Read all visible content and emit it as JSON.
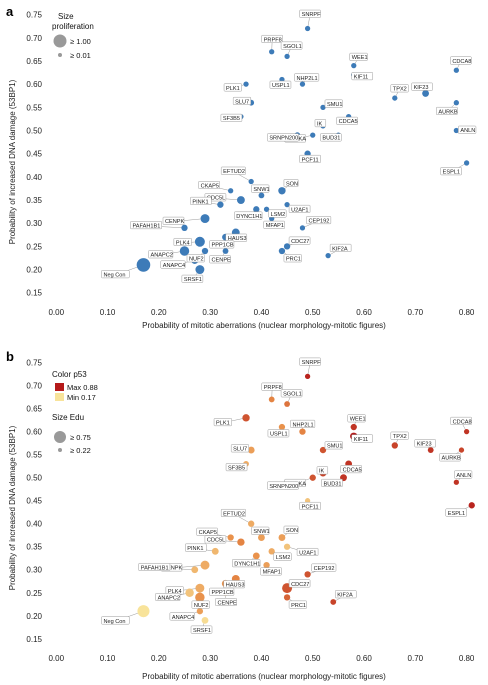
{
  "chart_data": [
    {
      "panel_letter": "a",
      "type": "scatter",
      "xlabel": "Probability of mitotic aberrations (nuclear morphology-mitotic figures)",
      "ylabel": "Probability of increased DNA damage (53BP1)",
      "xlim": [
        -0.02,
        0.83
      ],
      "ylim": [
        0.13,
        0.76
      ],
      "xticks": [
        "0.00",
        "0.10",
        "0.20",
        "0.30",
        "0.40",
        "0.50",
        "0.60",
        "0.70",
        "0.80"
      ],
      "yticks": [
        "0.15",
        "0.20",
        "0.25",
        "0.30",
        "0.35",
        "0.40",
        "0.45",
        "0.50",
        "0.55",
        "0.60",
        "0.65",
        "0.70",
        "0.75"
      ],
      "point_color": "#3d7bb8",
      "legend": {
        "title": "Size\nproliferation",
        "title_lines": [
          "Size",
          "proliferation"
        ],
        "items": [
          {
            "label": "≥ 1.00",
            "size_value": 1.0
          },
          {
            "label": "≥ 0.01",
            "size_value": 0.01
          }
        ],
        "position": "top-left"
      },
      "points": [
        {
          "x": 0.49,
          "y": 0.72,
          "size": 0.2,
          "label": "SNRPF"
        },
        {
          "x": 0.42,
          "y": 0.67,
          "size": 0.2,
          "label": "PRPF8"
        },
        {
          "x": 0.45,
          "y": 0.66,
          "size": 0.2,
          "label": "SGOL1"
        },
        {
          "x": 0.37,
          "y": 0.6,
          "size": 0.2,
          "label": "PLK1"
        },
        {
          "x": 0.44,
          "y": 0.61,
          "size": 0.2,
          "label": "USPL1"
        },
        {
          "x": 0.48,
          "y": 0.6,
          "size": 0.2,
          "label": "NHP2L1"
        },
        {
          "x": 0.58,
          "y": 0.64,
          "size": 0.2,
          "label": "WEE1"
        },
        {
          "x": 0.58,
          "y": 0.62,
          "size": 0.2,
          "label": "KIF11"
        },
        {
          "x": 0.66,
          "y": 0.57,
          "size": 0.2,
          "label": "TPX2"
        },
        {
          "x": 0.78,
          "y": 0.63,
          "size": 0.2,
          "label": "CDCA8"
        },
        {
          "x": 0.72,
          "y": 0.58,
          "size": 0.35,
          "label": "KIF23"
        },
        {
          "x": 0.78,
          "y": 0.56,
          "size": 0.2,
          "label": "AURKB"
        },
        {
          "x": 0.78,
          "y": 0.5,
          "size": 0.2,
          "label": "ANLN"
        },
        {
          "x": 0.8,
          "y": 0.43,
          "size": 0.2,
          "label": "ESPL1"
        },
        {
          "x": 0.38,
          "y": 0.56,
          "size": 0.25,
          "label": "SLU7"
        },
        {
          "x": 0.36,
          "y": 0.53,
          "size": 0.2,
          "label": "SF3B5"
        },
        {
          "x": 0.52,
          "y": 0.55,
          "size": 0.2,
          "label": "SMU1"
        },
        {
          "x": 0.57,
          "y": 0.53,
          "size": 0.2,
          "label": "CDCA5"
        },
        {
          "x": 0.52,
          "y": 0.51,
          "size": 0.2,
          "label": "IK"
        },
        {
          "x": 0.55,
          "y": 0.49,
          "size": 0.2,
          "label": "BUD31"
        },
        {
          "x": 0.5,
          "y": 0.49,
          "size": 0.2,
          "label": "AURKA"
        },
        {
          "x": 0.47,
          "y": 0.49,
          "size": 0.25,
          "label": "SRNPN200"
        },
        {
          "x": 0.49,
          "y": 0.45,
          "size": 0.3,
          "label": "PCF11"
        },
        {
          "x": 0.38,
          "y": 0.39,
          "size": 0.2,
          "label": "EFTUD2"
        },
        {
          "x": 0.34,
          "y": 0.37,
          "size": 0.2,
          "label": "CKAP5"
        },
        {
          "x": 0.4,
          "y": 0.36,
          "size": 0.25,
          "label": "SNW1"
        },
        {
          "x": 0.44,
          "y": 0.37,
          "size": 0.4,
          "label": "SON"
        },
        {
          "x": 0.45,
          "y": 0.34,
          "size": 0.2,
          "label": "U2AF1"
        },
        {
          "x": 0.36,
          "y": 0.35,
          "size": 0.45,
          "label": "CDC5L"
        },
        {
          "x": 0.32,
          "y": 0.34,
          "size": 0.3,
          "label": "PINK1"
        },
        {
          "x": 0.41,
          "y": 0.33,
          "size": 0.2,
          "label": "LSM2"
        },
        {
          "x": 0.39,
          "y": 0.33,
          "size": 0.3,
          "label": "DYNC1H1"
        },
        {
          "x": 0.42,
          "y": 0.31,
          "size": 0.2,
          "label": "MFAP1"
        },
        {
          "x": 0.29,
          "y": 0.31,
          "size": 0.55,
          "label": "CENPK"
        },
        {
          "x": 0.25,
          "y": 0.29,
          "size": 0.3,
          "label": "PAFAH1B1"
        },
        {
          "x": 0.48,
          "y": 0.29,
          "size": 0.2,
          "label": "CEP192"
        },
        {
          "x": 0.35,
          "y": 0.28,
          "size": 0.45,
          "label": "HAUS3"
        },
        {
          "x": 0.33,
          "y": 0.27,
          "size": 0.35,
          "label": "PPP1CB"
        },
        {
          "x": 0.28,
          "y": 0.26,
          "size": 0.65,
          "label": "PLK4"
        },
        {
          "x": 0.25,
          "y": 0.24,
          "size": 0.6,
          "label": "ANAPC2"
        },
        {
          "x": 0.29,
          "y": 0.24,
          "size": 0.3,
          "label": "NUF2"
        },
        {
          "x": 0.33,
          "y": 0.24,
          "size": 0.25,
          "label": "CENPE"
        },
        {
          "x": 0.45,
          "y": 0.25,
          "size": 0.3,
          "label": "CDC27"
        },
        {
          "x": 0.44,
          "y": 0.24,
          "size": 0.3,
          "label": "PRC1"
        },
        {
          "x": 0.53,
          "y": 0.23,
          "size": 0.2,
          "label": "KIF2A"
        },
        {
          "x": 0.27,
          "y": 0.22,
          "size": 0.4,
          "label": "ANAPC4"
        },
        {
          "x": 0.28,
          "y": 0.2,
          "size": 0.55,
          "label": "SRSF1"
        },
        {
          "x": 0.17,
          "y": 0.21,
          "size": 1.0,
          "label": "Neg Con"
        }
      ]
    },
    {
      "panel_letter": "b",
      "type": "scatter",
      "xlabel": "Probability of mitotic aberrations (nuclear morphology-mitotic figures)",
      "ylabel": "Probability of increased DNA damage (53BP1)",
      "xlim": [
        -0.02,
        0.83
      ],
      "ylim": [
        0.13,
        0.76
      ],
      "xticks": [
        "0.00",
        "0.10",
        "0.20",
        "0.30",
        "0.40",
        "0.50",
        "0.60",
        "0.70",
        "0.80"
      ],
      "yticks": [
        "0.15",
        "0.20",
        "0.25",
        "0.30",
        "0.35",
        "0.40",
        "0.45",
        "0.50",
        "0.55",
        "0.60",
        "0.65",
        "0.70",
        "0.75"
      ],
      "color_legend": {
        "title": "Color p53",
        "items": [
          {
            "label": "Max 0.88",
            "color": "#b51a1a"
          },
          {
            "label": "Min 0.17",
            "color": "#f8e39a"
          }
        ]
      },
      "size_legend": {
        "title": "Size Edu",
        "items": [
          {
            "label": "≥ 0.75",
            "size_value": 1.0
          },
          {
            "label": "≥ 0.22",
            "size_value": 0.01
          }
        ]
      },
      "points": [
        {
          "x": 0.49,
          "y": 0.72,
          "size": 0.2,
          "color_value": 0.85,
          "label": "SNRPF"
        },
        {
          "x": 0.42,
          "y": 0.67,
          "size": 0.25,
          "color_value": 0.55,
          "label": "PRPF8"
        },
        {
          "x": 0.45,
          "y": 0.66,
          "size": 0.25,
          "color_value": 0.6,
          "label": "SGOL1"
        },
        {
          "x": 0.37,
          "y": 0.63,
          "size": 0.4,
          "color_value": 0.7,
          "label": "PLK1"
        },
        {
          "x": 0.44,
          "y": 0.61,
          "size": 0.3,
          "color_value": 0.5,
          "label": "USPL1"
        },
        {
          "x": 0.48,
          "y": 0.6,
          "size": 0.3,
          "color_value": 0.55,
          "label": "NHP2L1"
        },
        {
          "x": 0.58,
          "y": 0.61,
          "size": 0.3,
          "color_value": 0.8,
          "label": "WEE1"
        },
        {
          "x": 0.58,
          "y": 0.59,
          "size": 0.4,
          "color_value": 0.88,
          "label": "KIF11"
        },
        {
          "x": 0.66,
          "y": 0.57,
          "size": 0.3,
          "color_value": 0.75,
          "label": "TPX2"
        },
        {
          "x": 0.8,
          "y": 0.6,
          "size": 0.2,
          "color_value": 0.8,
          "label": "CDCA8"
        },
        {
          "x": 0.73,
          "y": 0.56,
          "size": 0.25,
          "color_value": 0.8,
          "label": "KIF23"
        },
        {
          "x": 0.79,
          "y": 0.56,
          "size": 0.2,
          "color_value": 0.75,
          "label": "AURKB"
        },
        {
          "x": 0.78,
          "y": 0.49,
          "size": 0.2,
          "color_value": 0.8,
          "label": "ANLN"
        },
        {
          "x": 0.81,
          "y": 0.44,
          "size": 0.3,
          "color_value": 0.85,
          "label": "ESPL1"
        },
        {
          "x": 0.38,
          "y": 0.56,
          "size": 0.35,
          "color_value": 0.45,
          "label": "SLU7"
        },
        {
          "x": 0.37,
          "y": 0.53,
          "size": 0.25,
          "color_value": 0.4,
          "label": "SF3B5"
        },
        {
          "x": 0.52,
          "y": 0.56,
          "size": 0.3,
          "color_value": 0.7,
          "label": "SMU1"
        },
        {
          "x": 0.57,
          "y": 0.53,
          "size": 0.35,
          "color_value": 0.8,
          "label": "CDCA5"
        },
        {
          "x": 0.52,
          "y": 0.51,
          "size": 0.35,
          "color_value": 0.75,
          "label": "IK"
        },
        {
          "x": 0.56,
          "y": 0.5,
          "size": 0.35,
          "color_value": 0.8,
          "label": "BUD31"
        },
        {
          "x": 0.5,
          "y": 0.5,
          "size": 0.3,
          "color_value": 0.7,
          "label": "AURKA"
        },
        {
          "x": 0.47,
          "y": 0.49,
          "size": 0.25,
          "color_value": 0.35,
          "label": "SRNPN200"
        },
        {
          "x": 0.49,
          "y": 0.45,
          "size": 0.2,
          "color_value": 0.3,
          "label": "PCF11"
        },
        {
          "x": 0.38,
          "y": 0.4,
          "size": 0.3,
          "color_value": 0.4,
          "label": "EFTUD2"
        },
        {
          "x": 0.34,
          "y": 0.37,
          "size": 0.3,
          "color_value": 0.5,
          "label": "CKAP5"
        },
        {
          "x": 0.4,
          "y": 0.37,
          "size": 0.35,
          "color_value": 0.45,
          "label": "SNW1"
        },
        {
          "x": 0.44,
          "y": 0.37,
          "size": 0.35,
          "color_value": 0.45,
          "label": "SON"
        },
        {
          "x": 0.45,
          "y": 0.35,
          "size": 0.3,
          "color_value": 0.3,
          "label": "U2AF1"
        },
        {
          "x": 0.36,
          "y": 0.36,
          "size": 0.4,
          "color_value": 0.55,
          "label": "CDC5L"
        },
        {
          "x": 0.31,
          "y": 0.34,
          "size": 0.35,
          "color_value": 0.35,
          "label": "PINK1"
        },
        {
          "x": 0.42,
          "y": 0.34,
          "size": 0.3,
          "color_value": 0.4,
          "label": "LSM2"
        },
        {
          "x": 0.39,
          "y": 0.33,
          "size": 0.35,
          "color_value": 0.5,
          "label": "DYNC1H1"
        },
        {
          "x": 0.41,
          "y": 0.31,
          "size": 0.3,
          "color_value": 0.45,
          "label": "MFAP1"
        },
        {
          "x": 0.29,
          "y": 0.31,
          "size": 0.55,
          "color_value": 0.4,
          "label": "CENPK"
        },
        {
          "x": 0.27,
          "y": 0.3,
          "size": 0.35,
          "color_value": 0.35,
          "label": "PAFAH1B1"
        },
        {
          "x": 0.49,
          "y": 0.29,
          "size": 0.3,
          "color_value": 0.7,
          "label": "CEP192"
        },
        {
          "x": 0.35,
          "y": 0.28,
          "size": 0.45,
          "color_value": 0.55,
          "label": "HAUS3"
        },
        {
          "x": 0.33,
          "y": 0.27,
          "size": 0.4,
          "color_value": 0.5,
          "label": "PPP1CB"
        },
        {
          "x": 0.28,
          "y": 0.26,
          "size": 0.55,
          "color_value": 0.4,
          "label": "PLK4"
        },
        {
          "x": 0.26,
          "y": 0.25,
          "size": 0.5,
          "color_value": 0.3,
          "label": "ANAPC2"
        },
        {
          "x": 0.28,
          "y": 0.24,
          "size": 0.6,
          "color_value": 0.5,
          "label": "NUF2"
        },
        {
          "x": 0.33,
          "y": 0.25,
          "size": 0.3,
          "color_value": 0.4,
          "label": "CENPE"
        },
        {
          "x": 0.45,
          "y": 0.26,
          "size": 0.65,
          "color_value": 0.7,
          "label": "CDC27"
        },
        {
          "x": 0.45,
          "y": 0.24,
          "size": 0.3,
          "color_value": 0.65,
          "label": "PRC1"
        },
        {
          "x": 0.54,
          "y": 0.23,
          "size": 0.25,
          "color_value": 0.75,
          "label": "KIF2A"
        },
        {
          "x": 0.28,
          "y": 0.21,
          "size": 0.3,
          "color_value": 0.45,
          "label": "ANAPC4"
        },
        {
          "x": 0.29,
          "y": 0.19,
          "size": 0.35,
          "color_value": 0.2,
          "label": "SRSF1"
        },
        {
          "x": 0.17,
          "y": 0.21,
          "size": 0.85,
          "color_value": 0.17,
          "label": "Neg Con"
        }
      ]
    }
  ]
}
